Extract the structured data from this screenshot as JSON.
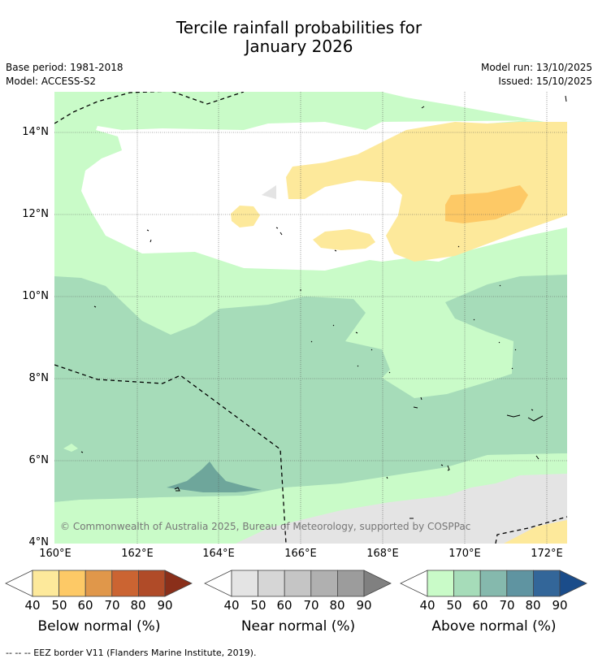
{
  "title": {
    "line1": "Tercile rainfall probabilities for",
    "line2": "January 2026"
  },
  "meta": {
    "base_period": "Base period: 1981-2018",
    "model": "Model: ACCESS-S2",
    "model_run": "Model run: 13/10/2025",
    "issued": "Issued: 15/10/2025"
  },
  "map": {
    "lat_labels": [
      "14°N",
      "12°N",
      "10°N",
      "8°N",
      "6°N",
      "4°N"
    ],
    "lon_labels": [
      "160°E",
      "162°E",
      "164°E",
      "166°E",
      "168°E",
      "170°E",
      "172°E"
    ],
    "lon_range": [
      160,
      172.6
    ],
    "lat_range": [
      4,
      15.1
    ],
    "copyright": "© Commonwealth of Australia 2025, Bureau of Meteorology, supported by COSPPac"
  },
  "colors": {
    "below": [
      "#fde99b",
      "#fdc966",
      "#e0974a",
      "#cb6432",
      "#b04b28",
      "#8a2f1a"
    ],
    "near": [
      "#e4e4e4",
      "#d6d6d6",
      "#c5c5c5",
      "#b0b0b0",
      "#9c9c9c",
      "#808080"
    ],
    "above": [
      "#c9fbc8",
      "#a6dcb9",
      "#85b9ad",
      "#5f94a1",
      "#336699",
      "#1a4c8a"
    ]
  },
  "legends": {
    "ticks": [
      "40",
      "50",
      "60",
      "70",
      "80",
      "90"
    ],
    "below_title": "Below normal (%)",
    "near_title": "Near normal (%)",
    "above_title": "Above normal (%)"
  },
  "footnote": "--  --  -- EEZ border V11 (Flanders Marine Institute, 2019)."
}
